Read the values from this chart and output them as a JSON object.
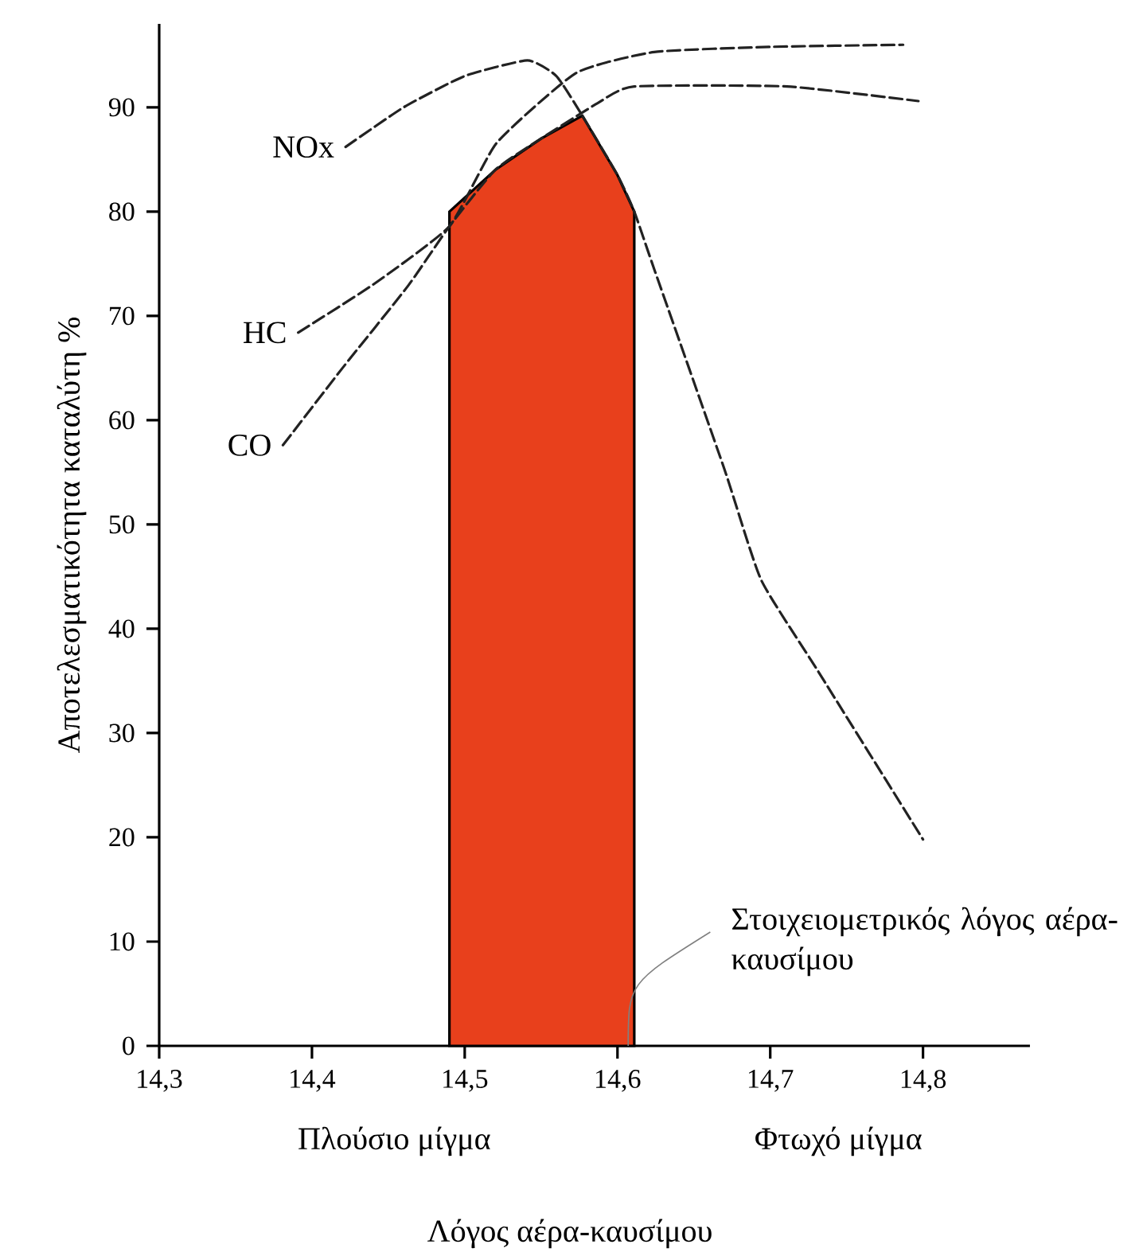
{
  "chart_data": {
    "type": "line",
    "xlabel": "Λόγος αέρα-καυσίμου",
    "ylabel": "Αποτελεσματικότητα καταλύτη %",
    "xlim": [
      14.3,
      14.87
    ],
    "ylim": [
      0,
      98
    ],
    "xticks": [
      {
        "value": 14.3,
        "label": "14,3"
      },
      {
        "value": 14.4,
        "label": "14,4"
      },
      {
        "value": 14.5,
        "label": "14,5"
      },
      {
        "value": 14.6,
        "label": "14,6"
      },
      {
        "value": 14.7,
        "label": "14,7"
      },
      {
        "value": 14.8,
        "label": "14,8"
      }
    ],
    "yticks": [
      0,
      10,
      20,
      30,
      40,
      50,
      60,
      70,
      80,
      90
    ],
    "line_style": "dashed",
    "grid": false,
    "legend": false,
    "series": [
      {
        "type": "area",
        "color": "#e8401c",
        "x": [
          14.49,
          14.52,
          14.55,
          14.577,
          14.6,
          14.611
        ],
        "values": [
          80,
          84,
          87,
          89.2,
          83.5,
          80
        ]
      },
      {
        "name": "NOx",
        "color": "#222222",
        "x": [
          14.422,
          14.46,
          14.5,
          14.541,
          14.56,
          14.577,
          14.6,
          14.611,
          14.624,
          14.67,
          14.694,
          14.731,
          14.8
        ],
        "values": [
          86.2,
          90,
          93,
          94.5,
          93,
          89.2,
          83.5,
          80,
          74.5,
          55.3,
          44.7,
          36,
          19.8
        ]
      },
      {
        "name": "HC",
        "color": "#222222",
        "x": [
          14.391,
          14.44,
          14.49,
          14.521,
          14.573,
          14.624,
          14.7,
          14.787
        ],
        "values": [
          68.4,
          73,
          78.6,
          86.6,
          93.3,
          95.3,
          95.8,
          96
        ]
      },
      {
        "name": "CO",
        "color": "#222222",
        "x": [
          14.381,
          14.42,
          14.463,
          14.49,
          14.52,
          14.55,
          14.587,
          14.611,
          14.711,
          14.797
        ],
        "values": [
          57.6,
          65,
          72.9,
          78.6,
          84,
          87,
          90.4,
          92,
          92,
          90.6
        ]
      }
    ],
    "annotations": [
      "Πλούσιο μίγμα",
      "Φτωχό μίγμα",
      {
        "text": "Στοιχειομετρικός λόγος αέρα-καυσίμου",
        "x": 14.607,
        "y": 0
      }
    ]
  }
}
